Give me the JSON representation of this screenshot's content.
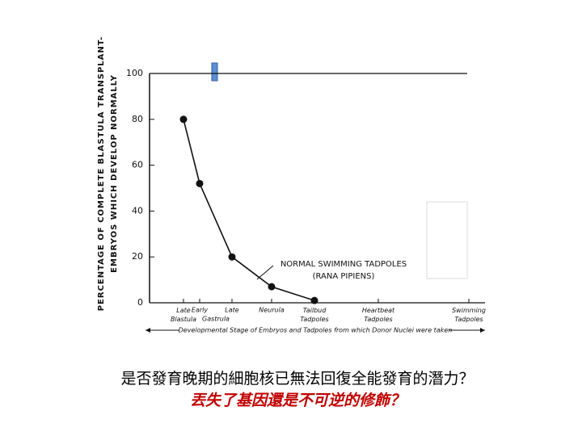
{
  "chart_data": {
    "type": "line",
    "y_label": [
      "PERCENTAGE OF COMPLETE BLASTULA TRANSPLANT-",
      "EMBRYOS WHICH DEVELOP NORMALLY"
    ],
    "x_label": "Developmental Stage of Embryos and Tadpoles from which Donor Nuclei were taken",
    "categories": [
      "Late Blastula",
      "Early",
      "Late",
      "Neurula",
      "Tailbud Tadpoles",
      "Heartbeat Tadpoles",
      "Swimming Tadpoles"
    ],
    "group_label": "Gastrula",
    "values": [
      80,
      52,
      20,
      7,
      1,
      null,
      null
    ],
    "color": "#111111",
    "ylim": [
      0,
      100
    ],
    "yticks": [
      0,
      20,
      40,
      60,
      80,
      100
    ],
    "annotation": [
      "NORMAL SWIMMING TADPOLES",
      "(RANA PIPIENS)"
    ]
  },
  "caption": [
    "是否發育晚期的細胞核已無法回復全能發育的潛力？",
    "丟失了基因還是不可逆的修飾？"
  ]
}
